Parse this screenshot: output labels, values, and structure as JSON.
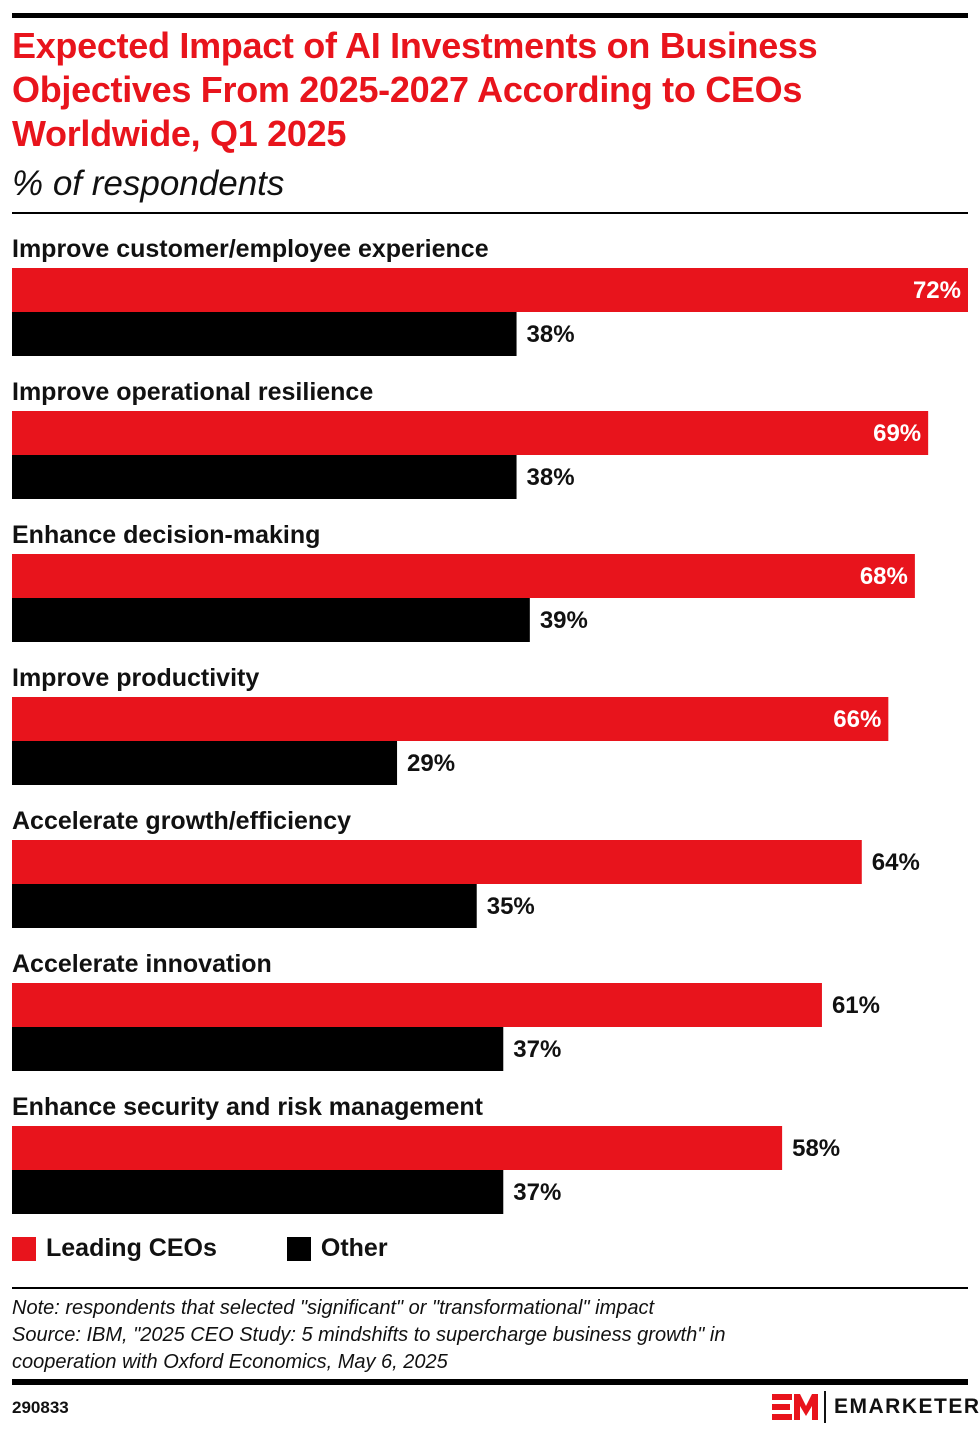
{
  "title": "Expected Impact of AI Investments on Business Objectives From 2025-2027 According to CEOs Worldwide, Q1 2025",
  "subtitle": "% of respondents",
  "colors": {
    "leading": "#e8141c",
    "other": "#000000",
    "title": "#e8141c"
  },
  "chart_data": {
    "type": "bar",
    "orientation": "horizontal",
    "title": "Expected Impact of AI Investments on Business Objectives From 2025-2027 According to CEOs Worldwide, Q1 2025",
    "subtitle": "% of respondents",
    "categories": [
      "Improve customer/employee experience",
      "Improve operational resilience",
      "Enhance decision-making",
      "Improve productivity",
      "Accelerate growth/efficiency",
      "Accelerate innovation",
      "Enhance security and risk management"
    ],
    "series": [
      {
        "name": "Leading CEOs",
        "color": "#e8141c",
        "values": [
          72,
          69,
          68,
          66,
          64,
          61,
          58
        ]
      },
      {
        "name": "Other",
        "color": "#000000",
        "values": [
          38,
          38,
          39,
          29,
          35,
          37,
          37
        ]
      }
    ],
    "value_suffix": "%",
    "xlim": [
      0,
      72
    ],
    "grid": false,
    "legend": "bottom-left"
  },
  "legend": [
    {
      "label": "Leading CEOs"
    },
    {
      "label": "Other"
    }
  ],
  "note": "Note: respondents that selected \"significant\" or \"transformational\" impact",
  "source_line1": "Source: IBM, \"2025 CEO Study: 5 mindshifts to supercharge business growth\" in",
  "source_line2": "cooperation with Oxford Economics, May 6, 2025",
  "chart_id": "290833",
  "brand": "EMARKETER"
}
